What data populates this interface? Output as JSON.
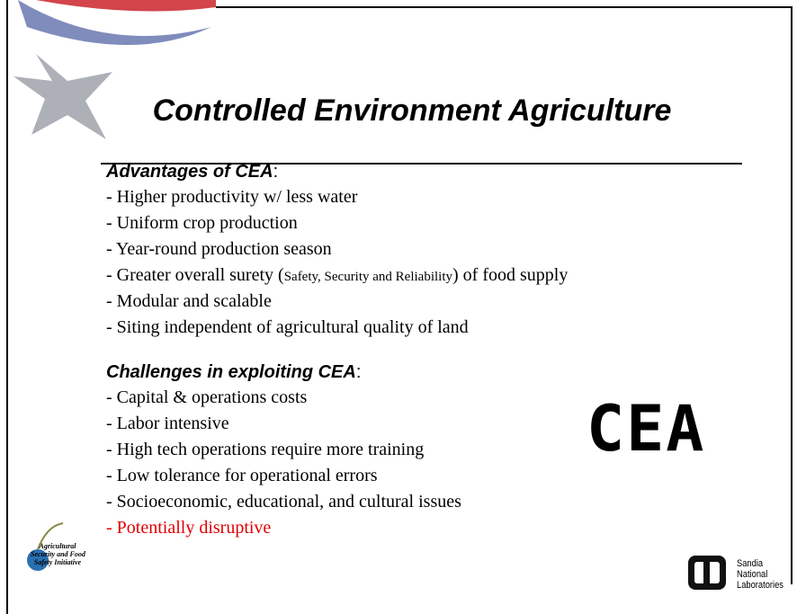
{
  "title": "Controlled Environment Agriculture",
  "sections": [
    {
      "heading": "Advantages of CEA",
      "heading_suffix": ":",
      "items": [
        "- Higher productivity w/ less water",
        "- Uniform crop production",
        "- Year-round production season",
        {
          "before": "- Greater overall surety (",
          "small": "Safety, Security and Reliability",
          "after": ") of food supply"
        },
        "- Modular and scalable",
        "- Siting independent of agricultural quality of land"
      ]
    },
    {
      "heading": "Challenges in exploiting CEA",
      "heading_suffix": ":",
      "items": [
        "- Capital & operations costs",
        "- Labor intensive",
        "- High tech operations require more training",
        "- Low tolerance for operational errors",
        "- Socioeconomic, educational, and cultural issues",
        "- Potentially disruptive"
      ]
    }
  ],
  "badge": "CEA",
  "left_logo": [
    "Agricultural",
    "Security and Food",
    "Safety Initiative"
  ],
  "right_logo": [
    "Sandia",
    "National",
    "Laboratories"
  ]
}
